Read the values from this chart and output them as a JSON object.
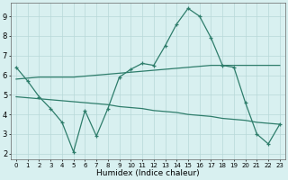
{
  "xlabel": "Humidex (Indice chaleur)",
  "x": [
    0,
    1,
    2,
    3,
    4,
    5,
    6,
    7,
    8,
    9,
    10,
    11,
    12,
    13,
    14,
    15,
    16,
    17,
    18,
    19,
    20,
    21,
    22,
    23
  ],
  "main_line": [
    6.4,
    5.7,
    4.9,
    4.3,
    3.6,
    2.1,
    4.2,
    2.9,
    4.3,
    5.9,
    6.3,
    6.6,
    6.5,
    7.5,
    8.6,
    9.4,
    9.0,
    7.9,
    6.5,
    6.4,
    4.6,
    3.0,
    2.5,
    3.5
  ],
  "upper_line_x": [
    0,
    1,
    2,
    3,
    4,
    5,
    6,
    7,
    8,
    9,
    10,
    11,
    12,
    13,
    14,
    15,
    16,
    17,
    18,
    19,
    20,
    21,
    22,
    23
  ],
  "upper_line_y": [
    5.8,
    5.85,
    5.9,
    5.9,
    5.9,
    5.9,
    5.95,
    6.0,
    6.05,
    6.1,
    6.15,
    6.2,
    6.25,
    6.3,
    6.35,
    6.4,
    6.45,
    6.5,
    6.5,
    6.5,
    6.5,
    6.5,
    6.5,
    6.5
  ],
  "lower_line_x": [
    0,
    1,
    2,
    3,
    4,
    5,
    6,
    7,
    8,
    9,
    10,
    11,
    12,
    13,
    14,
    15,
    16,
    17,
    18,
    19,
    20,
    21,
    22,
    23
  ],
  "lower_line_y": [
    4.9,
    4.85,
    4.8,
    4.75,
    4.7,
    4.65,
    4.6,
    4.55,
    4.5,
    4.4,
    4.35,
    4.3,
    4.2,
    4.15,
    4.1,
    4.0,
    3.95,
    3.9,
    3.8,
    3.75,
    3.7,
    3.6,
    3.55,
    3.5
  ],
  "line_color": "#2e7d6b",
  "bg_color": "#d8f0f0",
  "grid_color": "#b8d8d8",
  "ylim": [
    1.7,
    9.7
  ],
  "xlim": [
    -0.5,
    23.5
  ],
  "yticks": [
    2,
    3,
    4,
    5,
    6,
    7,
    8,
    9
  ],
  "xticks": [
    0,
    1,
    2,
    3,
    4,
    5,
    6,
    7,
    8,
    9,
    10,
    11,
    12,
    13,
    14,
    15,
    16,
    17,
    18,
    19,
    20,
    21,
    22,
    23
  ]
}
